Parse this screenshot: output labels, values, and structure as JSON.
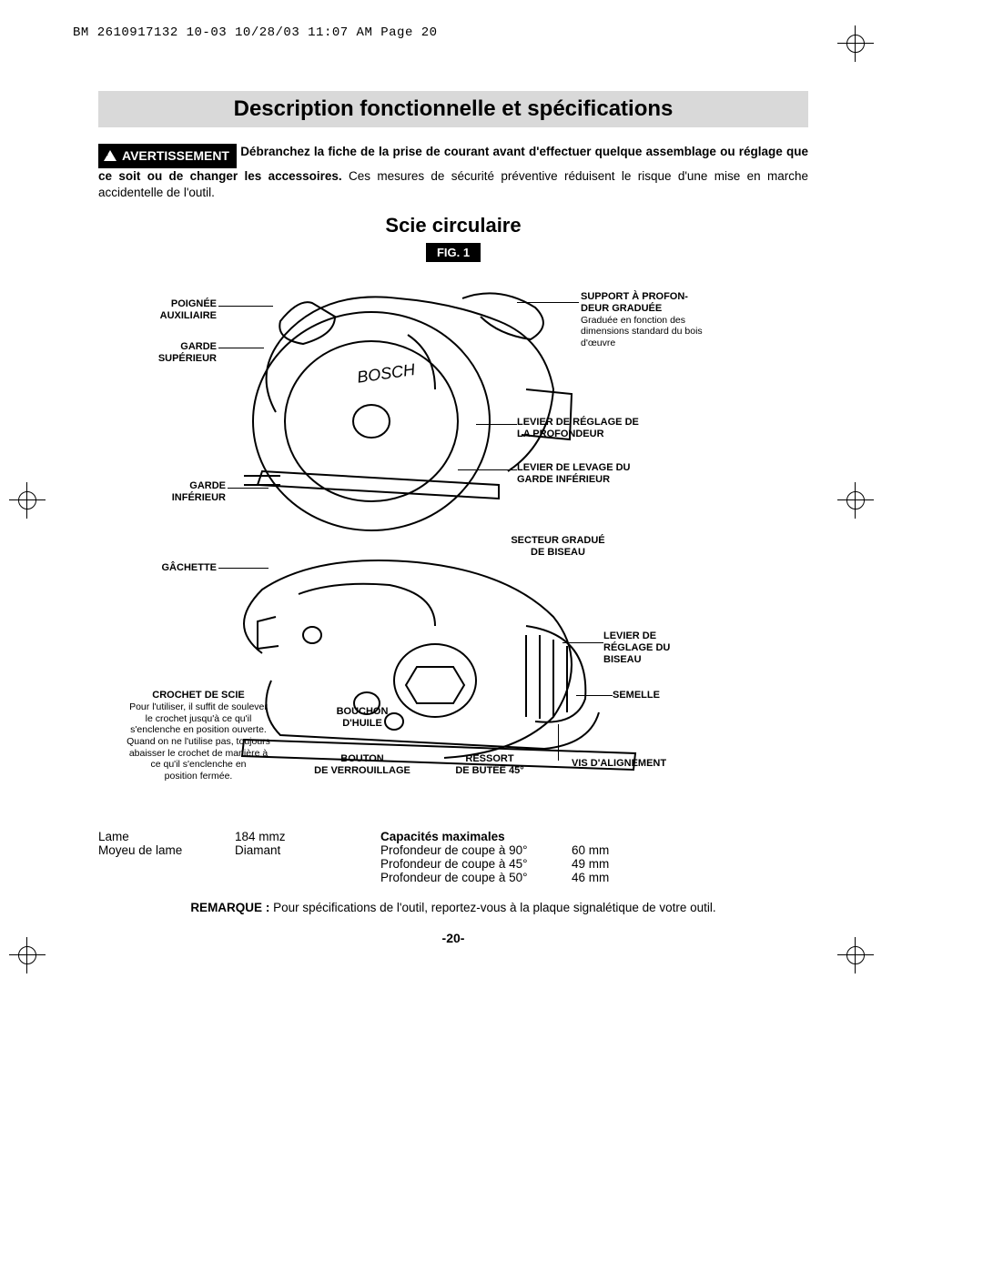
{
  "header": "BM 2610917132 10-03  10/28/03  11:07 AM  Page 20",
  "title": "Description fonctionnelle et spécifications",
  "warning": {
    "badge": "AVERTISSEMENT",
    "bold": "Débranchez la fiche de la prise de courant avant d'effectuer quelque assemblage ou réglage que ce soit ou de changer les accessoires.",
    "rest": " Ces mesures de sécurité préventive réduisent le risque d'une mise en marche accidentelle de l'outil."
  },
  "subtitle": "Scie circulaire",
  "fig_label": "FIG. 1",
  "callouts": {
    "top_left_1": "POIGNÉE\nAUXILIAIRE",
    "top_left_2": "GARDE\nSUPÉRIEUR",
    "top_right_1_head": "SUPPORT À PROFON-\nDEUR GRADUÉE",
    "top_right_1_sub": "Graduée en fonction des\ndimensions standard du bois\nd'œuvre",
    "top_right_2": "LEVIER DE RÉGLAGE DE\nLA PROFONDEUR",
    "top_right_3": "LEVIER DE LEVAGE DU\nGARDE INFÉRIEUR",
    "mid_left_1": "GARDE\nINFÉRIEUR",
    "bot_left_1": "GÂCHETTE",
    "bot_right_1": "SECTEUR GRADUÉ\nDE BISEAU",
    "bot_right_2": "LEVIER DE\nRÉGLAGE DU\nBISEAU",
    "bot_right_3": "SEMELLE",
    "bot_right_4": "VIS D'ALIGNEMENT",
    "bot_left_2_head": "CROCHET DE SCIE",
    "bot_left_2_sub": "Pour l'utiliser, il suffit de soulever\nle crochet jusqu'à ce qu'il\ns'enclenche en position ouverte.\nQuand on ne l'utilise pas, toujours\nabaisser le crochet de manière à\nce qu'il s'enclenche en\nposition fermée.",
    "bot_mid_1": "BOUCHON\nD'HUILE",
    "bot_mid_2": "BOUTON\nDE VERROUILLAGE",
    "bot_mid_3": "RESSORT\nDE BUTÉE 45°"
  },
  "specs": {
    "left": [
      {
        "label": "Lame",
        "value": "184 mmz"
      },
      {
        "label": "Moyeu de lame",
        "value": "Diamant"
      }
    ],
    "caps_heading": "Capacités maximales",
    "right": [
      {
        "label": "Profondeur de coupe à 90°",
        "value": "60 mm"
      },
      {
        "label": "Profondeur de coupe à 45°",
        "value": "49 mm"
      },
      {
        "label": "Profondeur de coupe à 50°",
        "value": "46 mm"
      }
    ]
  },
  "remark": {
    "bold": "REMARQUE :",
    "text": " Pour spécifications de l'outil, reportez-vous à la plaque signalétique de votre outil."
  },
  "page_num": "-20-"
}
